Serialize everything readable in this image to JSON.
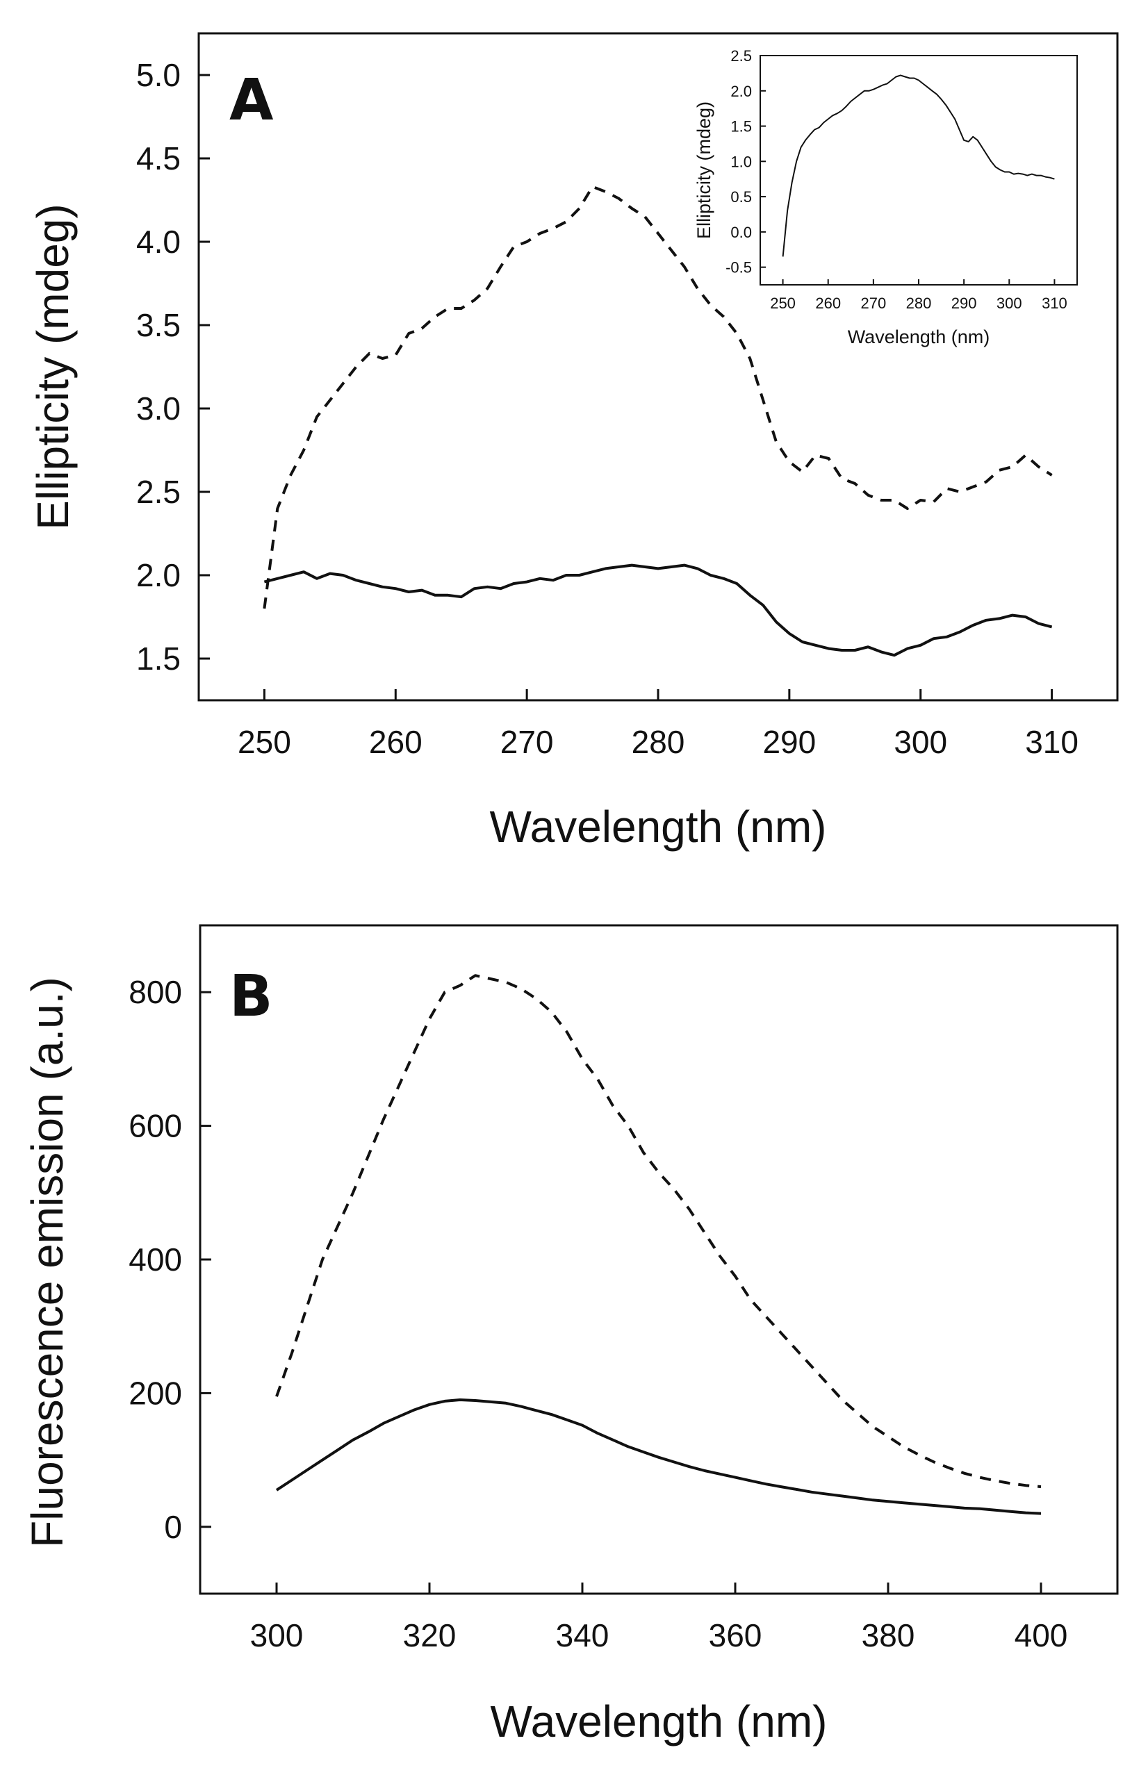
{
  "chart_data": [
    {
      "type": "line",
      "panel_label": "A",
      "xlabel": "Wavelength (nm)",
      "ylabel": "Ellipticity (mdeg)",
      "xlim": [
        245,
        315
      ],
      "ylim": [
        1.25,
        5.25
      ],
      "xticks": [
        250,
        260,
        270,
        280,
        290,
        300,
        310
      ],
      "yticks": [
        1.5,
        2.0,
        2.5,
        3.0,
        3.5,
        4.0,
        4.5,
        5.0
      ],
      "xtick_labels": [
        "250",
        "260",
        "270",
        "280",
        "290",
        "300",
        "310"
      ],
      "ytick_labels": [
        "1.5",
        "2.0",
        "2.5",
        "3.0",
        "3.5",
        "4.0",
        "4.5",
        "5.0"
      ],
      "series": [
        {
          "name": "dashed",
          "style": "dashed",
          "x": [
            250,
            251,
            252,
            253,
            254,
            255,
            256,
            257,
            258,
            259,
            260,
            261,
            262,
            263,
            264,
            265,
            266,
            267,
            268,
            269,
            270,
            271,
            272,
            273,
            274,
            275,
            276,
            277,
            278,
            279,
            280,
            281,
            282,
            283,
            284,
            285,
            286,
            287,
            288,
            289,
            290,
            291,
            292,
            293,
            294,
            295,
            296,
            297,
            298,
            299,
            300,
            301,
            302,
            303,
            304,
            305,
            306,
            307,
            308,
            309,
            310
          ],
          "y": [
            1.8,
            2.4,
            2.6,
            2.75,
            2.95,
            3.05,
            3.15,
            3.25,
            3.33,
            3.3,
            3.32,
            3.45,
            3.48,
            3.55,
            3.6,
            3.6,
            3.65,
            3.72,
            3.85,
            3.97,
            4.0,
            4.05,
            4.08,
            4.12,
            4.2,
            4.33,
            4.3,
            4.26,
            4.2,
            4.15,
            4.05,
            3.95,
            3.85,
            3.72,
            3.62,
            3.55,
            3.45,
            3.3,
            3.05,
            2.8,
            2.68,
            2.62,
            2.72,
            2.7,
            2.58,
            2.55,
            2.48,
            2.45,
            2.45,
            2.4,
            2.45,
            2.44,
            2.52,
            2.5,
            2.53,
            2.56,
            2.63,
            2.65,
            2.72,
            2.65,
            2.6
          ]
        },
        {
          "name": "solid",
          "style": "solid",
          "x": [
            250,
            251,
            252,
            253,
            254,
            255,
            256,
            257,
            258,
            259,
            260,
            261,
            262,
            263,
            264,
            265,
            266,
            267,
            268,
            269,
            270,
            271,
            272,
            273,
            274,
            275,
            276,
            277,
            278,
            279,
            280,
            281,
            282,
            283,
            284,
            285,
            286,
            287,
            288,
            289,
            290,
            291,
            292,
            293,
            294,
            295,
            296,
            297,
            298,
            299,
            300,
            301,
            302,
            303,
            304,
            305,
            306,
            307,
            308,
            309,
            310
          ],
          "y": [
            1.96,
            1.98,
            2.0,
            2.02,
            1.98,
            2.01,
            2.0,
            1.97,
            1.95,
            1.93,
            1.92,
            1.9,
            1.91,
            1.88,
            1.88,
            1.87,
            1.92,
            1.93,
            1.92,
            1.95,
            1.96,
            1.98,
            1.97,
            2.0,
            2.0,
            2.02,
            2.04,
            2.05,
            2.06,
            2.05,
            2.04,
            2.05,
            2.06,
            2.04,
            2.0,
            1.98,
            1.95,
            1.88,
            1.82,
            1.72,
            1.65,
            1.6,
            1.58,
            1.56,
            1.55,
            1.55,
            1.57,
            1.54,
            1.52,
            1.56,
            1.58,
            1.62,
            1.63,
            1.66,
            1.7,
            1.73,
            1.74,
            1.76,
            1.75,
            1.71,
            1.69
          ]
        }
      ],
      "inset": {
        "type": "line",
        "xlabel": "Wavelength (nm)",
        "ylabel": "Ellipticity (mdeg)",
        "xlim": [
          245,
          315
        ],
        "ylim": [
          -0.75,
          2.5
        ],
        "xticks": [
          250,
          260,
          270,
          280,
          290,
          300,
          310
        ],
        "yticks": [
          -0.5,
          0.0,
          0.5,
          1.0,
          1.5,
          2.0,
          2.5
        ],
        "xtick_labels": [
          "250",
          "260",
          "270",
          "280",
          "290",
          "300",
          "310"
        ],
        "ytick_labels": [
          "-0.5",
          "0.0",
          "0.5",
          "1.0",
          "1.5",
          "2.0",
          "2.5"
        ],
        "series": [
          {
            "name": "difference",
            "style": "solid",
            "x": [
              250,
              251,
              252,
              253,
              254,
              255,
              256,
              257,
              258,
              259,
              260,
              261,
              262,
              263,
              264,
              265,
              266,
              267,
              268,
              269,
              270,
              271,
              272,
              273,
              274,
              275,
              276,
              277,
              278,
              279,
              280,
              281,
              282,
              283,
              284,
              285,
              286,
              287,
              288,
              289,
              290,
              291,
              292,
              293,
              294,
              295,
              296,
              297,
              298,
              299,
              300,
              301,
              302,
              303,
              304,
              305,
              306,
              307,
              308,
              309,
              310
            ],
            "y": [
              -0.35,
              0.3,
              0.7,
              1.0,
              1.2,
              1.3,
              1.38,
              1.45,
              1.48,
              1.55,
              1.6,
              1.65,
              1.68,
              1.72,
              1.78,
              1.85,
              1.9,
              1.95,
              2.0,
              2.0,
              2.02,
              2.05,
              2.08,
              2.1,
              2.15,
              2.2,
              2.22,
              2.2,
              2.18,
              2.18,
              2.15,
              2.1,
              2.05,
              2.0,
              1.95,
              1.88,
              1.8,
              1.7,
              1.6,
              1.45,
              1.3,
              1.28,
              1.35,
              1.3,
              1.2,
              1.1,
              1.0,
              0.92,
              0.88,
              0.85,
              0.85,
              0.82,
              0.83,
              0.82,
              0.8,
              0.82,
              0.8,
              0.8,
              0.78,
              0.77,
              0.75
            ]
          }
        ]
      }
    },
    {
      "type": "line",
      "panel_label": "B",
      "xlabel": "Wavelength (nm)",
      "ylabel": "Fluorescence emission (a.u.)",
      "xlim": [
        290,
        410
      ],
      "ylim": [
        -100,
        900
      ],
      "xticks": [
        300,
        320,
        340,
        360,
        380,
        400
      ],
      "yticks": [
        0,
        200,
        400,
        600,
        800
      ],
      "xtick_labels": [
        "300",
        "320",
        "340",
        "360",
        "380",
        "400"
      ],
      "ytick_labels": [
        "0",
        "200",
        "400",
        "600",
        "800"
      ],
      "series": [
        {
          "name": "dashed",
          "style": "dashed",
          "x": [
            300,
            302,
            304,
            306,
            308,
            310,
            312,
            314,
            316,
            318,
            320,
            322,
            324,
            326,
            328,
            330,
            332,
            334,
            336,
            338,
            340,
            342,
            344,
            346,
            348,
            350,
            352,
            354,
            356,
            358,
            360,
            362,
            364,
            366,
            368,
            370,
            372,
            374,
            376,
            378,
            380,
            382,
            384,
            386,
            388,
            390,
            392,
            394,
            396,
            398,
            400
          ],
          "y": [
            195,
            260,
            330,
            400,
            450,
            500,
            555,
            610,
            660,
            710,
            760,
            800,
            810,
            825,
            820,
            815,
            805,
            790,
            770,
            740,
            700,
            670,
            630,
            600,
            560,
            530,
            505,
            475,
            440,
            405,
            375,
            340,
            315,
            290,
            265,
            240,
            215,
            190,
            170,
            150,
            135,
            120,
            108,
            97,
            88,
            80,
            74,
            69,
            65,
            62,
            60
          ]
        },
        {
          "name": "solid",
          "style": "solid",
          "x": [
            300,
            302,
            304,
            306,
            308,
            310,
            312,
            314,
            316,
            318,
            320,
            322,
            324,
            326,
            328,
            330,
            332,
            334,
            336,
            338,
            340,
            342,
            344,
            346,
            348,
            350,
            352,
            354,
            356,
            358,
            360,
            362,
            364,
            366,
            368,
            370,
            372,
            374,
            376,
            378,
            380,
            382,
            384,
            386,
            388,
            390,
            392,
            394,
            396,
            398,
            400
          ],
          "y": [
            55,
            70,
            85,
            100,
            115,
            130,
            142,
            155,
            165,
            175,
            183,
            188,
            190,
            189,
            187,
            185,
            180,
            174,
            168,
            160,
            152,
            140,
            130,
            120,
            112,
            104,
            97,
            90,
            84,
            79,
            74,
            69,
            64,
            60,
            56,
            52,
            49,
            46,
            43,
            40,
            38,
            36,
            34,
            32,
            30,
            28,
            27,
            25,
            23,
            21,
            20
          ]
        }
      ]
    }
  ]
}
